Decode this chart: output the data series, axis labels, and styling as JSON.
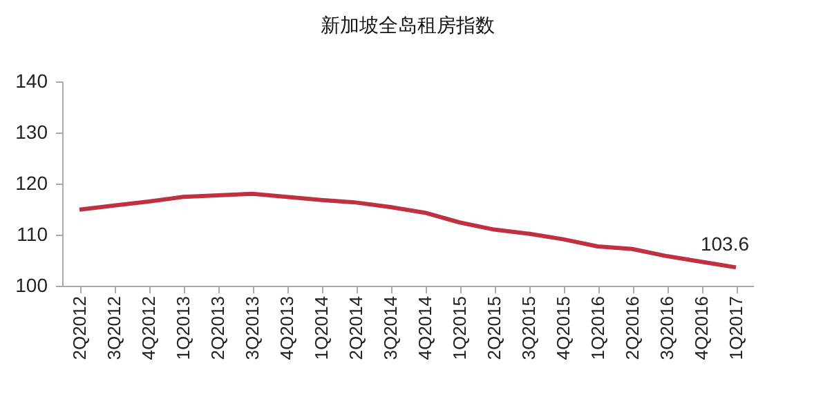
{
  "chart_data": {
    "type": "line",
    "title": "新加坡全岛租房指数",
    "categories": [
      "2Q2012",
      "3Q2012",
      "4Q2012",
      "1Q2013",
      "2Q2013",
      "3Q2013",
      "4Q2013",
      "1Q2014",
      "2Q2014",
      "3Q2014",
      "4Q2014",
      "1Q2015",
      "2Q2015",
      "3Q2015",
      "4Q2015",
      "1Q2016",
      "2Q2016",
      "3Q2016",
      "4Q2016",
      "1Q2017"
    ],
    "series": [
      {
        "color": "#c0313f",
        "values": [
          114.9,
          115.7,
          116.5,
          117.4,
          117.7,
          118.0,
          117.4,
          116.8,
          116.3,
          115.4,
          114.3,
          112.4,
          111.0,
          110.2,
          109.1,
          107.7,
          107.2,
          105.8,
          104.7,
          103.6
        ],
        "value_labels": [
          null,
          null,
          null,
          null,
          null,
          null,
          null,
          null,
          null,
          null,
          null,
          null,
          null,
          null,
          null,
          null,
          null,
          null,
          null,
          "103.6"
        ]
      }
    ],
    "ylim": [
      100,
      140
    ],
    "yticks": [
      100,
      110,
      120,
      130,
      140
    ],
    "grid": false,
    "legend": false,
    "marker": "none",
    "line_style": "solid"
  }
}
